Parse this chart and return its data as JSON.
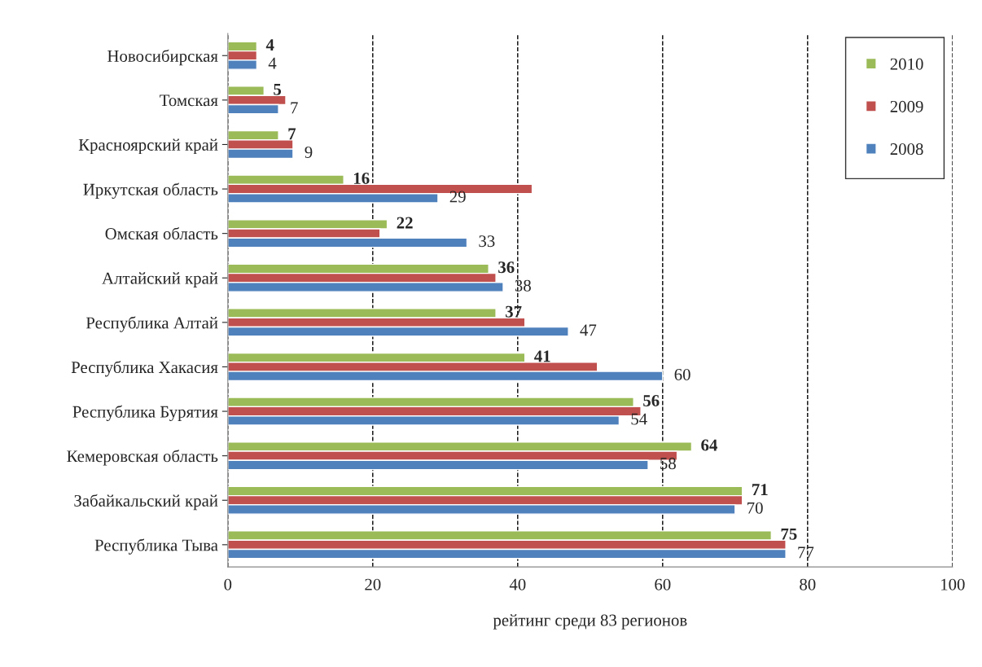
{
  "chart_data": {
    "type": "bar",
    "orientation": "horizontal",
    "xlabel": "рейтинг среди 83 регионов",
    "categories": [
      "Новосибирская",
      "Томская",
      "Красноярский край",
      "Иркутская область",
      "Омская область",
      "Алтайский край",
      "Республика Алтай",
      "Республика Хакасия",
      "Республика Бурятия",
      "Кемеровская область",
      "Забайкальский край",
      "Республика Тыва"
    ],
    "series": [
      {
        "name": "2010",
        "color": "#9bbb59",
        "values": [
          4,
          5,
          7,
          16,
          22,
          36,
          37,
          41,
          56,
          64,
          71,
          75
        ],
        "value_labels": [
          "4",
          "5",
          "7",
          "16",
          "22",
          "36",
          "37",
          "41",
          "56",
          "64",
          "71",
          "75"
        ]
      },
      {
        "name": "2009",
        "color": "#c0504d",
        "values": [
          4,
          8,
          9,
          42,
          21,
          37,
          41,
          51,
          57,
          62,
          71,
          77
        ]
      },
      {
        "name": "2008",
        "color": "#4f81bd",
        "values": [
          4,
          7,
          9,
          29,
          33,
          38,
          47,
          60,
          54,
          58,
          70,
          77
        ],
        "value_labels": [
          "4",
          "7",
          "9",
          "29",
          "33",
          "38",
          "47",
          "60",
          "54",
          "58",
          "70",
          "77"
        ]
      }
    ],
    "xlim": [
      0,
      100
    ],
    "xticks": [
      0,
      20,
      40,
      60,
      80,
      100
    ],
    "grid": "x",
    "legend": "right"
  }
}
